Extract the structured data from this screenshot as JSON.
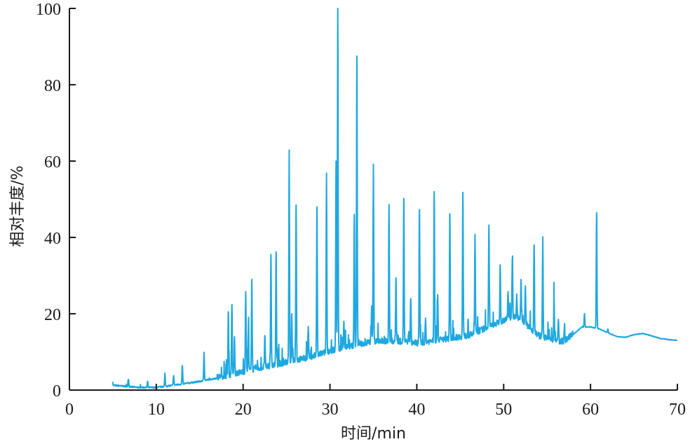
{
  "chart_data": {
    "type": "line",
    "xlabel": "时间/min",
    "ylabel": "相对丰度/%",
    "xlim": [
      0,
      70
    ],
    "ylim": [
      0,
      100
    ],
    "x_ticks": [
      "0",
      "10",
      "20",
      "30",
      "40",
      "50",
      "60",
      "70"
    ],
    "y_ticks": [
      "0",
      "20",
      "40",
      "60",
      "80",
      "100"
    ],
    "grid": false,
    "line_color": "#1fa8e0",
    "baseline": [
      [
        5,
        1.2
      ],
      [
        8,
        0.6
      ],
      [
        10,
        0.6
      ],
      [
        12,
        1.2
      ],
      [
        15,
        2.2
      ],
      [
        18,
        3.5
      ],
      [
        20,
        4.5
      ],
      [
        22,
        5.5
      ],
      [
        25,
        7
      ],
      [
        28,
        8.5
      ],
      [
        30,
        10
      ],
      [
        33,
        11.5
      ],
      [
        35,
        12.5
      ],
      [
        38,
        12.5
      ],
      [
        40,
        12
      ],
      [
        43,
        13
      ],
      [
        46,
        14
      ],
      [
        48,
        16
      ],
      [
        50,
        18
      ],
      [
        51,
        19
      ],
      [
        52,
        18.5
      ],
      [
        53,
        16
      ],
      [
        54,
        14
      ],
      [
        56,
        12.5
      ],
      [
        57,
        12.5
      ],
      [
        58,
        14.5
      ],
      [
        59,
        16.5
      ],
      [
        60,
        16.5
      ],
      [
        61,
        16
      ],
      [
        62,
        15
      ],
      [
        63,
        14
      ],
      [
        64,
        13.8
      ],
      [
        65,
        14.5
      ],
      [
        66,
        14.8
      ],
      [
        67,
        14.2
      ],
      [
        68,
        13.5
      ],
      [
        69,
        13.2
      ],
      [
        70,
        13
      ]
    ],
    "peaks": [
      [
        6.8,
        2.8
      ],
      [
        9.0,
        2.2
      ],
      [
        11.0,
        4.3
      ],
      [
        12.0,
        3.8
      ],
      [
        13.0,
        6.4
      ],
      [
        15.5,
        9.8
      ],
      [
        18.3,
        20.5
      ],
      [
        18.7,
        22.0
      ],
      [
        19.0,
        14.0
      ],
      [
        20.3,
        25.8
      ],
      [
        20.6,
        16.5
      ],
      [
        21.0,
        29.0
      ],
      [
        22.5,
        14.0
      ],
      [
        23.2,
        35.5
      ],
      [
        23.8,
        36.2
      ],
      [
        25.3,
        59.0
      ],
      [
        25.6,
        20.0
      ],
      [
        26.1,
        48.5
      ],
      [
        27.5,
        16.0
      ],
      [
        28.5,
        48.0
      ],
      [
        29.6,
        56.5
      ],
      [
        30.7,
        60.0
      ],
      [
        30.9,
        100.0
      ],
      [
        31.6,
        18.0
      ],
      [
        32.8,
        46.0
      ],
      [
        33.1,
        87.5
      ],
      [
        34.8,
        22.0
      ],
      [
        35.0,
        58.3
      ],
      [
        36.8,
        48.6
      ],
      [
        37.6,
        29.4
      ],
      [
        38.5,
        50.2
      ],
      [
        39.3,
        24.0
      ],
      [
        40.3,
        47.3
      ],
      [
        41.0,
        18.5
      ],
      [
        42.0,
        52.0
      ],
      [
        42.4,
        25.0
      ],
      [
        43.8,
        46.2
      ],
      [
        45.3,
        51.8
      ],
      [
        46.7,
        40.8
      ],
      [
        48.3,
        43.2
      ],
      [
        49.6,
        32.8
      ],
      [
        50.5,
        25.0
      ],
      [
        51.0,
        34.5
      ],
      [
        51.5,
        25.0
      ],
      [
        52.0,
        29.0
      ],
      [
        52.5,
        27.0
      ],
      [
        53.5,
        38.0
      ],
      [
        54.5,
        39.2
      ],
      [
        55.8,
        23.5
      ],
      [
        56.3,
        18.5
      ],
      [
        57.0,
        17.0
      ],
      [
        59.3,
        20.0
      ],
      [
        60.7,
        46.5
      ],
      [
        62.0,
        16.0
      ]
    ]
  }
}
